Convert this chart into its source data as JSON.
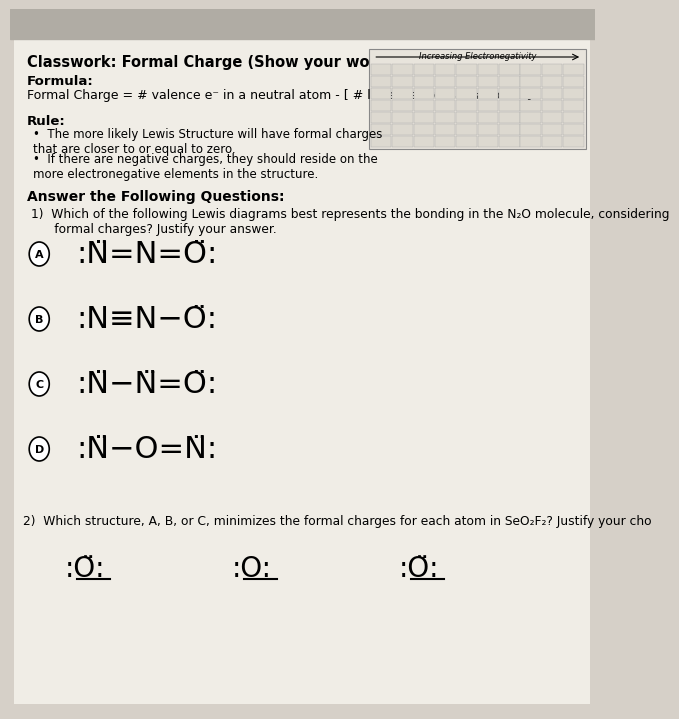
{
  "bg_color": "#d6d0c8",
  "paper_color": "#f0ede6",
  "title": "Classwork: Formal Charge (Show your work!)",
  "formula_label": "Formula:",
  "formula_text": "Formal Charge = # valence e⁻ in a neutral atom - [ # lone electrons + # bonds]",
  "rule_label": "Rule:",
  "rule_bullets": [
    "The more likely Lewis Structure will have formal charges\nthat are closer to or equal to zero.",
    "If there are negative charges, they should reside on the\nmore electronegative elements in the structure."
  ],
  "section_header": "Answer the Following Questions:",
  "q1_text": "1)  Which of the following Lewis diagrams best represents the bonding in the N₂O molecule, considering\n      formal charges? Justify your answer.",
  "options": [
    "A",
    "B",
    "C",
    "D"
  ],
  "option_formulas": [
    ":N̈=N=Ö:",
    ":N≡N−Ö:",
    ":N̈−N̈=Ö:",
    ":N̈−O=N̈:"
  ],
  "q2_text": "2)  Which structure, A, B, or C, minimizes the formal charges for each atom in SeO₂F₂? Justify your cho",
  "bottom_labels": [
    ":Ö:",
    ":O:",
    ":Ö:"
  ],
  "electronegativity_label": "Increasing Electronegativity"
}
